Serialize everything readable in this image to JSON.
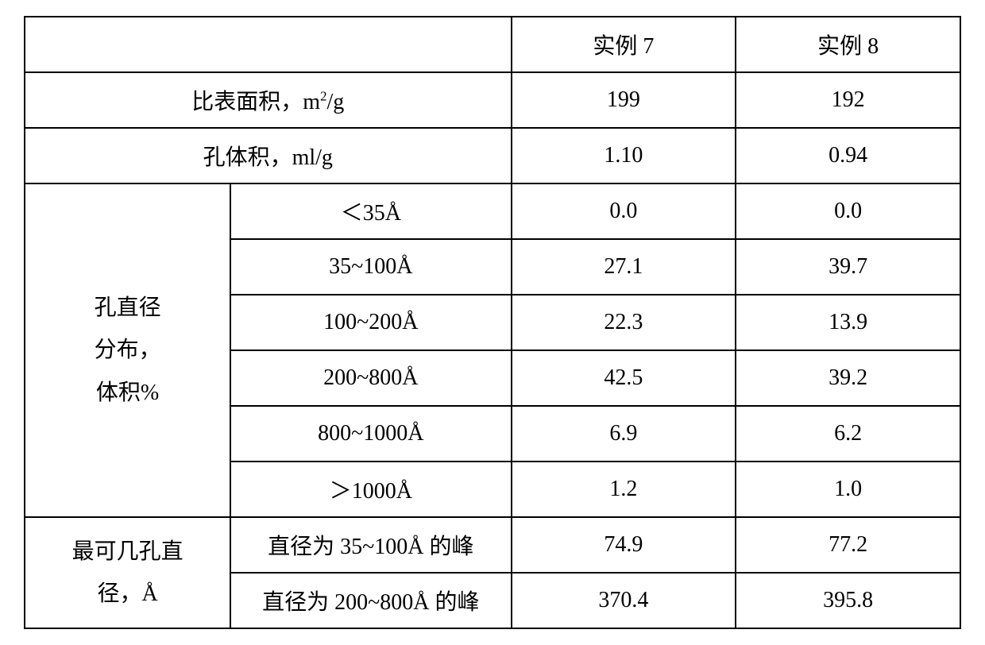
{
  "table": {
    "border_color": "#000000",
    "background": "#ffffff",
    "text_color": "#000000",
    "font_size_pt": 21,
    "header": {
      "col3": "实例 7",
      "col4": "实例 8"
    },
    "row_surface_area": {
      "label_html": "比表面积，m²/g",
      "ex7": "199",
      "ex8": "192"
    },
    "row_pore_volume": {
      "label": "孔体积，ml/g",
      "ex7": "1.10",
      "ex8": "0.94"
    },
    "pore_diameter_group": {
      "group_label_lines": [
        "孔直径",
        "分布，",
        "体积%"
      ],
      "rows": [
        {
          "range": "＜35Å",
          "ex7": "0.0",
          "ex8": "0.0"
        },
        {
          "range": "35~100Å",
          "ex7": "27.1",
          "ex8": "39.7"
        },
        {
          "range": "100~200Å",
          "ex7": "22.3",
          "ex8": "13.9"
        },
        {
          "range": "200~800Å",
          "ex7": "42.5",
          "ex8": "39.2"
        },
        {
          "range": "800~1000Å",
          "ex7": "6.9",
          "ex8": "6.2"
        },
        {
          "range": "＞1000Å",
          "ex7": "1.2",
          "ex8": "1.0"
        }
      ]
    },
    "most_probable_group": {
      "group_label_lines": [
        "最可几孔直",
        "径，Å"
      ],
      "rows": [
        {
          "desc": "直径为 35~100Å 的峰",
          "ex7": "74.9",
          "ex8": "77.2"
        },
        {
          "desc": "直径为 200~800Å 的峰",
          "ex7": "370.4",
          "ex8": "395.8"
        }
      ]
    }
  }
}
